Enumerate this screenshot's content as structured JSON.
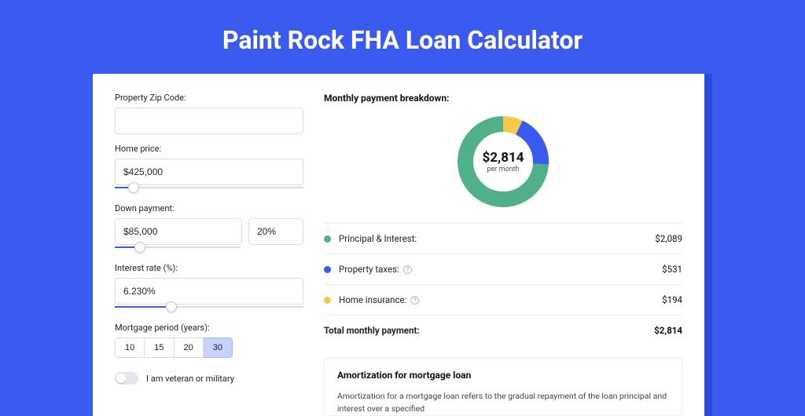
{
  "title": "Paint Rock FHA Loan Calculator",
  "colors": {
    "page_bg": "#3b5bf0",
    "green": "#4fb08a",
    "blue": "#3b5bf0",
    "yellow": "#f3c84b"
  },
  "form": {
    "zip_label": "Property Zip Code:",
    "zip_value": "",
    "home_price_label": "Home price:",
    "home_price_value": "$425,000",
    "home_price_slider_pct": 10,
    "down_label": "Down payment:",
    "down_amount": "$85,000",
    "down_pct": "20%",
    "down_slider_pct": 20,
    "rate_label": "Interest rate (%):",
    "rate_value": "6.230%",
    "rate_slider_pct": 30,
    "period_label": "Mortgage period (years):",
    "periods": [
      "10",
      "15",
      "20",
      "30"
    ],
    "period_selected_index": 3,
    "veteran_label": "I am veteran or military"
  },
  "breakdown": {
    "heading": "Monthly payment breakdown:",
    "center_amount": "$2,814",
    "center_sub": "per month",
    "items": [
      {
        "label": "Principal & Interest:",
        "value": "$2,089",
        "color": "#4fb08a",
        "pct": 74,
        "info": false
      },
      {
        "label": "Property taxes:",
        "value": "$531",
        "color": "#3b5bf0",
        "pct": 19,
        "info": true
      },
      {
        "label": "Home insurance:",
        "value": "$194",
        "color": "#f3c84b",
        "pct": 7,
        "info": true
      }
    ],
    "total_label": "Total monthly payment:",
    "total_value": "$2,814"
  },
  "amort": {
    "heading": "Amortization for mortgage loan",
    "text": "Amortization for a mortgage loan refers to the gradual repayment of the loan principal and interest over a specified"
  }
}
